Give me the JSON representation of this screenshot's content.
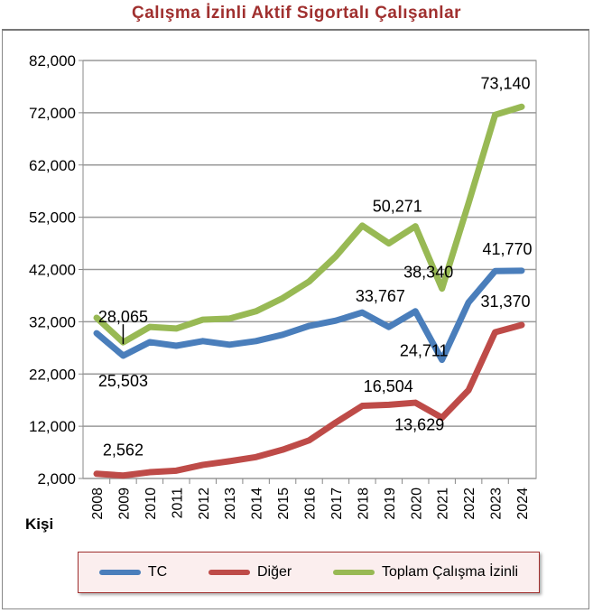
{
  "chart_data": {
    "type": "line",
    "title": "Çalışma İzinli Aktif Sigortalı Çalışanlar",
    "ylabel": "Kişi",
    "xlabel": "",
    "ylim": [
      2000,
      82000
    ],
    "yticks": [
      "2,000",
      "12,000",
      "22,000",
      "32,000",
      "42,000",
      "52,000",
      "62,000",
      "72,000",
      "82,000"
    ],
    "ytick_values": [
      2000,
      12000,
      22000,
      32000,
      42000,
      52000,
      62000,
      72000,
      82000
    ],
    "grid": true,
    "legend_position": "bottom",
    "categories": [
      "2008",
      "2009",
      "2010",
      "2011",
      "2012",
      "2013",
      "2014",
      "2015",
      "2016",
      "2017",
      "2018",
      "2019",
      "2020",
      "2021",
      "2022",
      "2023",
      "2024"
    ],
    "series": [
      {
        "name": "TC",
        "color": "#4a7ebb",
        "values": [
          29800,
          25503,
          28100,
          27400,
          28300,
          27600,
          28300,
          29500,
          31200,
          32200,
          33767,
          31000,
          34000,
          24711,
          35700,
          41700,
          41770
        ]
      },
      {
        "name": "Diğer",
        "color": "#be4b48",
        "values": [
          2900,
          2562,
          3200,
          3500,
          4600,
          5300,
          6100,
          7500,
          9300,
          12700,
          15900,
          16100,
          16504,
          13629,
          18900,
          30000,
          31370
        ]
      },
      {
        "name": "Toplam Çalışma İzinli",
        "color": "#98b954",
        "values": [
          32760,
          28065,
          31000,
          30700,
          32400,
          32600,
          34000,
          36500,
          39700,
          44500,
          50400,
          47000,
          50271,
          38340,
          54700,
          71600,
          73140
        ]
      }
    ],
    "annotations": [
      {
        "text": "28,065",
        "series": 2,
        "x": "2009"
      },
      {
        "text": "25,503",
        "series": 0,
        "x": "2009"
      },
      {
        "text": "2,562",
        "series": 1,
        "x": "2009"
      },
      {
        "text": "33,767",
        "series": 0,
        "x": "2018"
      },
      {
        "text": "16,504",
        "series": 1,
        "x": "2020"
      },
      {
        "text": "50,271",
        "series": 2,
        "x": "2020"
      },
      {
        "text": "38,340",
        "series": 2,
        "x": "2021"
      },
      {
        "text": "24,711",
        "series": 0,
        "x": "2021"
      },
      {
        "text": "13,629",
        "series": 1,
        "x": "2021"
      },
      {
        "text": "73,140",
        "series": 2,
        "x": "2024"
      },
      {
        "text": "41,770",
        "series": 0,
        "x": "2024"
      },
      {
        "text": "31,370",
        "series": 1,
        "x": "2024"
      }
    ]
  }
}
